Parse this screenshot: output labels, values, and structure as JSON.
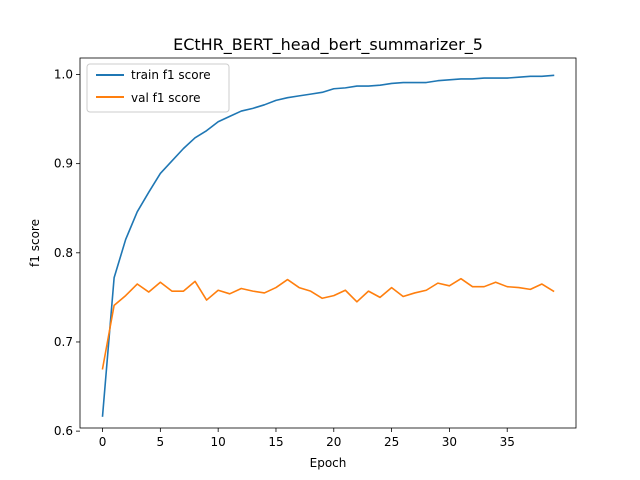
{
  "chart_data": {
    "type": "line",
    "title": "ECtHR_BERT_head_bert_summarizer_5",
    "xlabel": "Epoch",
    "ylabel": "f1 score",
    "xlim": [
      -1.95,
      40.95
    ],
    "ylim": [
      0.6035,
      1.0185
    ],
    "xticks": [
      0,
      5,
      10,
      15,
      20,
      25,
      30,
      35
    ],
    "yticks": [
      0.6,
      0.7,
      0.8,
      0.9,
      1.0
    ],
    "ytick_labels": [
      "0.6",
      "0.7",
      "0.8",
      "0.9",
      "1.0"
    ],
    "grid": false,
    "legend_position": "top-left",
    "x": [
      0,
      1,
      2,
      3,
      4,
      5,
      6,
      7,
      8,
      9,
      10,
      11,
      12,
      13,
      14,
      15,
      16,
      17,
      18,
      19,
      20,
      21,
      22,
      23,
      24,
      25,
      26,
      27,
      28,
      29,
      30,
      31,
      32,
      33,
      34,
      35,
      36,
      37,
      38,
      39
    ],
    "series": [
      {
        "name": "train f1 score",
        "color": "#1f77b4",
        "values": [
          0.617,
          0.772,
          0.815,
          0.846,
          0.868,
          0.889,
          0.903,
          0.917,
          0.929,
          0.937,
          0.947,
          0.953,
          0.959,
          0.962,
          0.966,
          0.971,
          0.974,
          0.976,
          0.978,
          0.98,
          0.984,
          0.985,
          0.987,
          0.987,
          0.988,
          0.99,
          0.991,
          0.991,
          0.991,
          0.993,
          0.994,
          0.995,
          0.995,
          0.996,
          0.996,
          0.996,
          0.997,
          0.998,
          0.998,
          0.999
        ]
      },
      {
        "name": "val f1 score",
        "color": "#ff7f0e",
        "values": [
          0.67,
          0.741,
          0.752,
          0.765,
          0.756,
          0.767,
          0.757,
          0.757,
          0.768,
          0.747,
          0.758,
          0.754,
          0.76,
          0.757,
          0.755,
          0.761,
          0.77,
          0.761,
          0.757,
          0.749,
          0.752,
          0.758,
          0.745,
          0.757,
          0.75,
          0.761,
          0.751,
          0.755,
          0.758,
          0.766,
          0.763,
          0.771,
          0.762,
          0.762,
          0.767,
          0.762,
          0.761,
          0.759,
          0.765,
          0.757
        ]
      }
    ]
  }
}
